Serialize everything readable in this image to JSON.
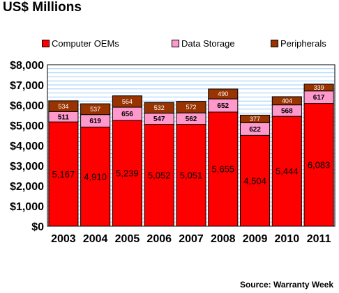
{
  "chart_data": {
    "type": "bar",
    "stacked": true,
    "title": "US$ Millions",
    "source": "Source: Warranty Week",
    "categories": [
      "2003",
      "2004",
      "2005",
      "2006",
      "2007",
      "2008",
      "2009",
      "2010",
      "2011"
    ],
    "series": [
      {
        "name": "Computer OEMs",
        "color": "#ff0000",
        "values": [
          5167,
          4910,
          5239,
          5052,
          5051,
          5655,
          4504,
          5444,
          6083
        ],
        "labels": [
          "5,167",
          "4,910",
          "5,239",
          "5,052",
          "5,051",
          "5,655",
          "4,504",
          "5,444",
          "6,083"
        ]
      },
      {
        "name": "Data Storage",
        "color": "#ff99cc",
        "values": [
          511,
          619,
          656,
          547,
          562,
          652,
          622,
          568,
          617
        ],
        "labels": [
          "511",
          "619",
          "656",
          "547",
          "562",
          "652",
          "622",
          "568",
          "617"
        ]
      },
      {
        "name": "Peripherals",
        "color": "#993300",
        "values": [
          534,
          537,
          564,
          532,
          572,
          490,
          377,
          404,
          339
        ],
        "labels": [
          "534",
          "537",
          "564",
          "532",
          "572",
          "490",
          "377",
          "404",
          "339"
        ]
      }
    ],
    "ylim": [
      0,
      8000
    ],
    "yticks": [
      0,
      1000,
      2000,
      3000,
      4000,
      5000,
      6000,
      7000,
      8000
    ],
    "ytick_labels": [
      "$0",
      "$1,000",
      "$2,000",
      "$3,000",
      "$4,000",
      "$5,000",
      "$6,000",
      "$7,000",
      "$8,000"
    ],
    "grid": true,
    "legend_position": "top",
    "plot_background": "#ffffff",
    "grid_color": "#99ccff"
  }
}
